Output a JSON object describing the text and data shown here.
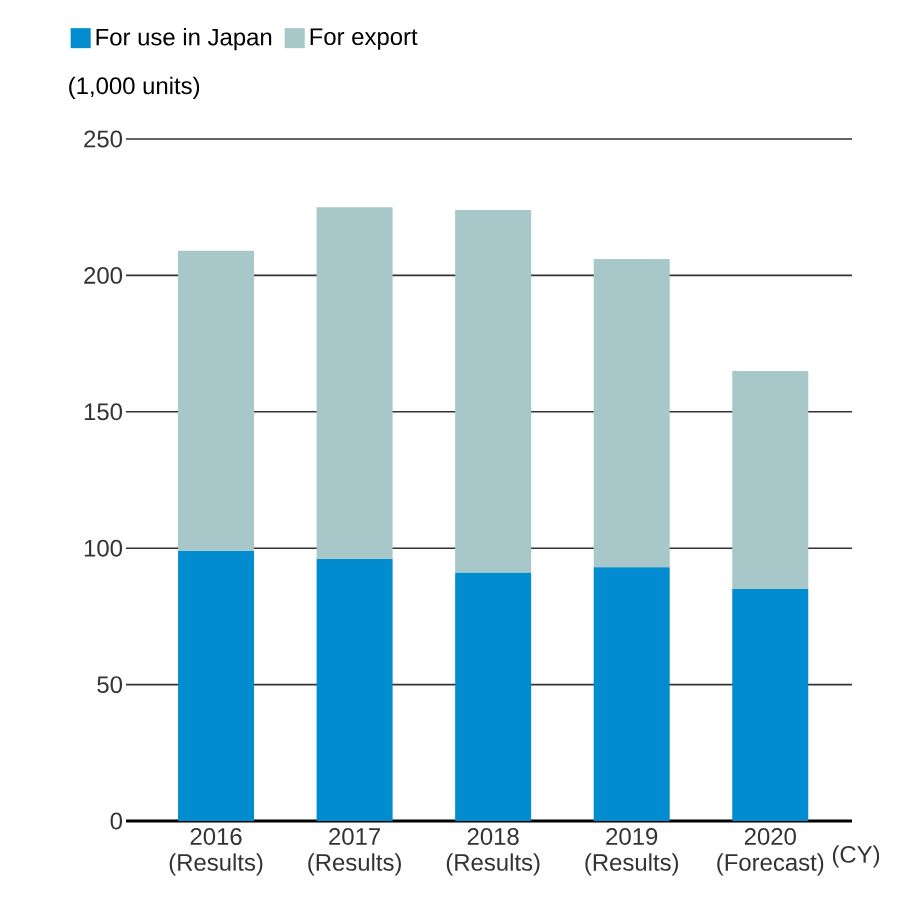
{
  "chart_data": {
    "type": "bar",
    "stacked": true,
    "ylabel": "(1,000 units)",
    "xlabel": "(CY)",
    "categories": [
      "2016 (Results)",
      "2017 (Results)",
      "2018 (Results)",
      "2019 (Results)",
      "2020 (Forecast)"
    ],
    "series": [
      {
        "name": "For use in Japan",
        "color": "#008ccf",
        "values": [
          99,
          96,
          91,
          93,
          85
        ]
      },
      {
        "name": "For export",
        "color": "#a7c7c8",
        "values": [
          110,
          129,
          133,
          113,
          80
        ]
      }
    ],
    "ylim": [
      0,
      250
    ],
    "yticks": [
      0,
      50,
      100,
      150,
      200,
      250
    ],
    "grid": "y",
    "legend": "top left"
  }
}
